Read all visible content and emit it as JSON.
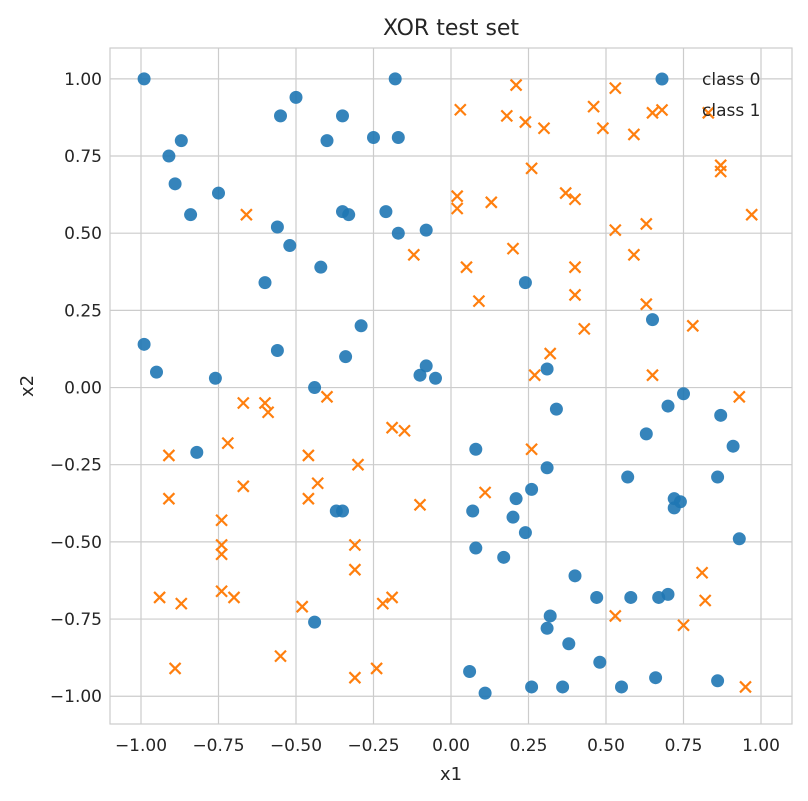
{
  "chart_data": {
    "type": "scatter",
    "title": "XOR test set",
    "xlabel": "x1",
    "ylabel": "x2",
    "xlim": [
      -1.1,
      1.1
    ],
    "ylim": [
      -1.09,
      1.1
    ],
    "grid": true,
    "legend_position": "top-right",
    "xticks": [
      -1.0,
      -0.75,
      -0.5,
      -0.25,
      0.0,
      0.25,
      0.5,
      0.75,
      1.0
    ],
    "xtick_labels": [
      "−1.00",
      "−0.75",
      "−0.50",
      "−0.25",
      "0.00",
      "0.25",
      "0.50",
      "0.75",
      "1.00"
    ],
    "yticks": [
      1.0,
      0.75,
      0.5,
      0.25,
      0.0,
      -0.25,
      -0.5,
      -0.75,
      -1.0
    ],
    "ytick_labels": [
      "1.00",
      "0.75",
      "0.50",
      "0.25",
      "0.00",
      "−0.25",
      "−0.50",
      "−0.75",
      "−1.00"
    ],
    "series": [
      {
        "name": "class 0",
        "marker": "circle",
        "color": "#1f77b4",
        "points": [
          [
            -0.99,
            1.0
          ],
          [
            -0.18,
            1.0
          ],
          [
            -0.5,
            0.94
          ],
          [
            -0.55,
            0.88
          ],
          [
            -0.35,
            0.88
          ],
          [
            -0.87,
            0.8
          ],
          [
            -0.4,
            0.8
          ],
          [
            -0.25,
            0.81
          ],
          [
            -0.17,
            0.81
          ],
          [
            -0.91,
            0.75
          ],
          [
            -0.89,
            0.66
          ],
          [
            -0.75,
            0.63
          ],
          [
            -0.84,
            0.56
          ],
          [
            -0.35,
            0.57
          ],
          [
            -0.33,
            0.56
          ],
          [
            -0.21,
            0.57
          ],
          [
            -0.56,
            0.52
          ],
          [
            -0.17,
            0.5
          ],
          [
            -0.08,
            0.51
          ],
          [
            -0.52,
            0.46
          ],
          [
            -0.42,
            0.39
          ],
          [
            -0.6,
            0.34
          ],
          [
            -0.29,
            0.2
          ],
          [
            -0.99,
            0.14
          ],
          [
            -0.56,
            0.12
          ],
          [
            -0.34,
            0.1
          ],
          [
            -0.95,
            0.05
          ],
          [
            -0.76,
            0.03
          ],
          [
            -0.08,
            0.07
          ],
          [
            -0.1,
            0.04
          ],
          [
            -0.05,
            0.03
          ],
          [
            -0.44,
            0.0
          ],
          [
            -0.82,
            -0.21
          ],
          [
            -0.37,
            -0.4
          ],
          [
            -0.35,
            -0.4
          ],
          [
            -0.44,
            -0.76
          ],
          [
            0.24,
            0.34
          ],
          [
            0.65,
            0.22
          ],
          [
            0.31,
            0.06
          ],
          [
            0.34,
            -0.07
          ],
          [
            0.75,
            -0.02
          ],
          [
            0.7,
            -0.06
          ],
          [
            0.87,
            -0.09
          ],
          [
            0.63,
            -0.15
          ],
          [
            0.91,
            -0.19
          ],
          [
            0.08,
            -0.2
          ],
          [
            0.31,
            -0.26
          ],
          [
            0.57,
            -0.29
          ],
          [
            0.86,
            -0.29
          ],
          [
            0.26,
            -0.33
          ],
          [
            0.21,
            -0.36
          ],
          [
            0.72,
            -0.36
          ],
          [
            0.74,
            -0.37
          ],
          [
            0.72,
            -0.39
          ],
          [
            0.07,
            -0.4
          ],
          [
            0.2,
            -0.42
          ],
          [
            0.24,
            -0.47
          ],
          [
            0.93,
            -0.49
          ],
          [
            0.08,
            -0.52
          ],
          [
            0.17,
            -0.55
          ],
          [
            0.4,
            -0.61
          ],
          [
            0.7,
            -0.67
          ],
          [
            0.67,
            -0.68
          ],
          [
            0.58,
            -0.68
          ],
          [
            0.47,
            -0.68
          ],
          [
            0.32,
            -0.74
          ],
          [
            0.31,
            -0.78
          ],
          [
            0.38,
            -0.83
          ],
          [
            0.48,
            -0.89
          ],
          [
            0.06,
            -0.92
          ],
          [
            0.66,
            -0.94
          ],
          [
            0.86,
            -0.95
          ],
          [
            0.26,
            -0.97
          ],
          [
            0.36,
            -0.97
          ],
          [
            0.55,
            -0.97
          ],
          [
            0.11,
            -0.99
          ]
        ]
      },
      {
        "name": "class 1",
        "marker": "x",
        "color": "#ff7f0e",
        "points": [
          [
            0.21,
            0.98
          ],
          [
            0.53,
            0.97
          ],
          [
            0.46,
            0.91
          ],
          [
            0.03,
            0.9
          ],
          [
            0.65,
            0.89
          ],
          [
            0.83,
            0.89
          ],
          [
            0.18,
            0.88
          ],
          [
            0.24,
            0.86
          ],
          [
            0.3,
            0.84
          ],
          [
            0.49,
            0.84
          ],
          [
            0.59,
            0.82
          ],
          [
            0.87,
            0.72
          ],
          [
            0.26,
            0.71
          ],
          [
            0.87,
            0.7
          ],
          [
            0.37,
            0.63
          ],
          [
            0.4,
            0.61
          ],
          [
            0.02,
            0.62
          ],
          [
            0.02,
            0.58
          ],
          [
            0.13,
            0.6
          ],
          [
            0.97,
            0.56
          ],
          [
            -0.66,
            0.56
          ],
          [
            0.63,
            0.53
          ],
          [
            0.53,
            0.51
          ],
          [
            0.2,
            0.45
          ],
          [
            -0.12,
            0.43
          ],
          [
            0.59,
            0.43
          ],
          [
            0.05,
            0.39
          ],
          [
            0.4,
            0.39
          ],
          [
            0.4,
            0.3
          ],
          [
            0.09,
            0.28
          ],
          [
            0.63,
            0.27
          ],
          [
            0.43,
            0.19
          ],
          [
            0.78,
            0.2
          ],
          [
            0.32,
            0.11
          ],
          [
            0.27,
            0.04
          ],
          [
            0.65,
            0.04
          ],
          [
            -0.4,
            -0.03
          ],
          [
            0.93,
            -0.03
          ],
          [
            -0.67,
            -0.05
          ],
          [
            -0.6,
            -0.05
          ],
          [
            -0.59,
            -0.08
          ],
          [
            -0.19,
            -0.13
          ],
          [
            -0.15,
            -0.14
          ],
          [
            -0.72,
            -0.18
          ],
          [
            0.26,
            -0.2
          ],
          [
            -0.91,
            -0.22
          ],
          [
            -0.46,
            -0.22
          ],
          [
            -0.3,
            -0.25
          ],
          [
            -0.67,
            -0.32
          ],
          [
            -0.43,
            -0.31
          ],
          [
            -0.91,
            -0.36
          ],
          [
            -0.46,
            -0.36
          ],
          [
            0.11,
            -0.34
          ],
          [
            -0.1,
            -0.38
          ],
          [
            -0.74,
            -0.43
          ],
          [
            -0.74,
            -0.51
          ],
          [
            -0.74,
            -0.54
          ],
          [
            -0.31,
            -0.51
          ],
          [
            -0.31,
            -0.59
          ],
          [
            0.81,
            -0.6
          ],
          [
            -0.74,
            -0.66
          ],
          [
            -0.7,
            -0.68
          ],
          [
            -0.94,
            -0.68
          ],
          [
            -0.87,
            -0.7
          ],
          [
            -0.48,
            -0.71
          ],
          [
            -0.22,
            -0.7
          ],
          [
            -0.19,
            -0.68
          ],
          [
            0.82,
            -0.69
          ],
          [
            0.53,
            -0.74
          ],
          [
            0.75,
            -0.77
          ],
          [
            -0.55,
            -0.87
          ],
          [
            -0.89,
            -0.91
          ],
          [
            -0.24,
            -0.91
          ],
          [
            -0.31,
            -0.94
          ],
          [
            0.95,
            -0.97
          ]
        ]
      }
    ]
  }
}
